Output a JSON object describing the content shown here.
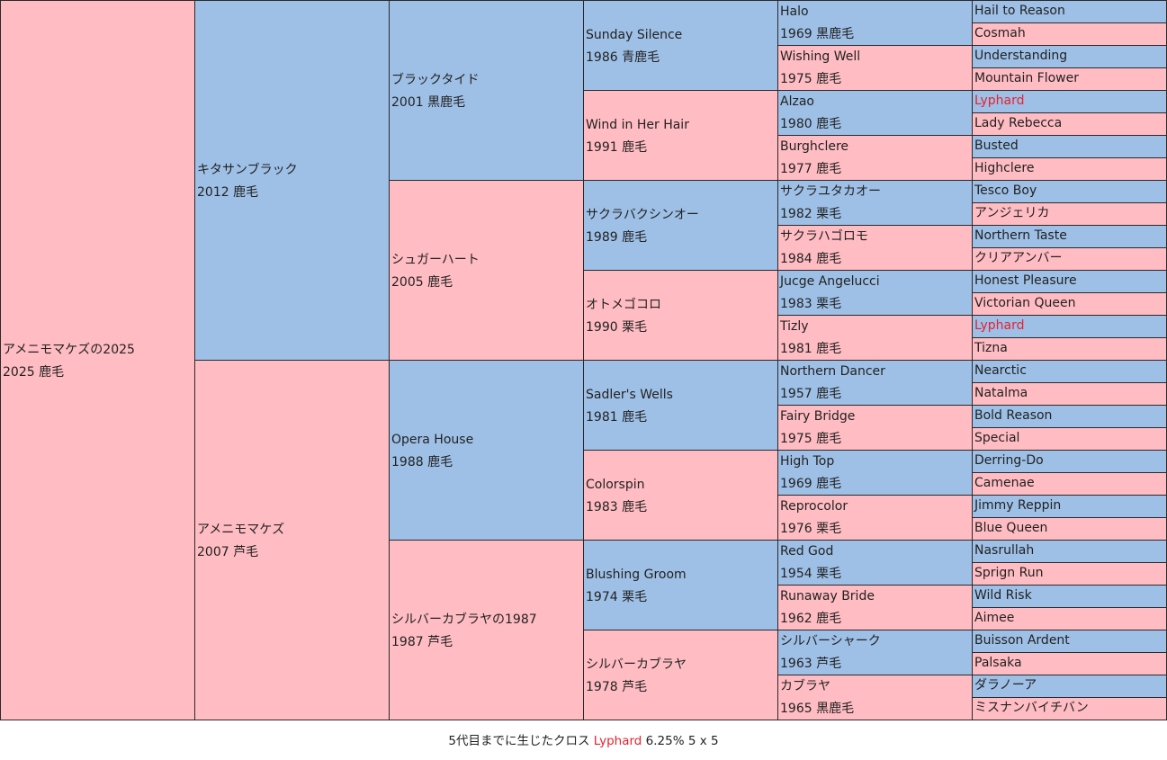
{
  "horse": {
    "name": "アメニモマケズの2025",
    "info": "2025 鹿毛"
  },
  "gen1": [
    {
      "name": "キタサンブラック",
      "info": "2012 鹿毛",
      "sex": "stallion"
    },
    {
      "name": "アメニモマケズ",
      "info": "2007 芦毛",
      "sex": "mare"
    }
  ],
  "gen2": [
    {
      "name": "ブラックタイド",
      "info": "2001 黒鹿毛",
      "sex": "stallion"
    },
    {
      "name": "シュガーハート",
      "info": "2005 鹿毛",
      "sex": "mare"
    },
    {
      "name": "Opera House",
      "info": "1988 鹿毛",
      "sex": "stallion"
    },
    {
      "name": "シルバーカブラヤの1987",
      "info": "1987 芦毛",
      "sex": "mare"
    }
  ],
  "gen3": [
    {
      "name": "Sunday Silence",
      "info": "1986 青鹿毛",
      "sex": "stallion"
    },
    {
      "name": "Wind in Her Hair",
      "info": "1991 鹿毛",
      "sex": "mare"
    },
    {
      "name": "サクラバクシンオー",
      "info": "1989 鹿毛",
      "sex": "stallion"
    },
    {
      "name": "オトメゴコロ",
      "info": "1990 栗毛",
      "sex": "mare"
    },
    {
      "name": "Sadler's Wells",
      "info": "1981 鹿毛",
      "sex": "stallion"
    },
    {
      "name": "Colorspin",
      "info": "1983 鹿毛",
      "sex": "mare"
    },
    {
      "name": "Blushing Groom",
      "info": "1974 栗毛",
      "sex": "stallion"
    },
    {
      "name": "シルバーカブラヤ",
      "info": "1978 芦毛",
      "sex": "mare"
    }
  ],
  "gen4": [
    {
      "name": "Halo",
      "info": "1969 黒鹿毛",
      "sex": "stallion"
    },
    {
      "name": "Wishing Well",
      "info": "1975 鹿毛",
      "sex": "mare"
    },
    {
      "name": "Alzao",
      "info": "1980 鹿毛",
      "sex": "stallion"
    },
    {
      "name": "Burghclere",
      "info": "1977 鹿毛",
      "sex": "mare"
    },
    {
      "name": "サクラユタカオー",
      "info": "1982 栗毛",
      "sex": "stallion"
    },
    {
      "name": "サクラハゴロモ",
      "info": "1984 鹿毛",
      "sex": "mare"
    },
    {
      "name": "Jucge Angelucci",
      "info": "1983 栗毛",
      "sex": "stallion"
    },
    {
      "name": "Tizly",
      "info": "1981 鹿毛",
      "sex": "mare"
    },
    {
      "name": "Northern Dancer",
      "info": "1957 鹿毛",
      "sex": "stallion"
    },
    {
      "name": "Fairy Bridge",
      "info": "1975 鹿毛",
      "sex": "mare"
    },
    {
      "name": "High Top",
      "info": "1969 鹿毛",
      "sex": "stallion"
    },
    {
      "name": "Reprocolor",
      "info": "1976 栗毛",
      "sex": "mare"
    },
    {
      "name": "Red God",
      "info": "1954 栗毛",
      "sex": "stallion"
    },
    {
      "name": "Runaway Bride",
      "info": "1962 鹿毛",
      "sex": "mare"
    },
    {
      "name": "シルバーシャーク",
      "info": "1963 芦毛",
      "sex": "stallion"
    },
    {
      "name": "カブラヤ",
      "info": "1965 黒鹿毛",
      "sex": "mare"
    }
  ],
  "gen5": [
    {
      "name": "Hail to Reason",
      "sex": "stallion"
    },
    {
      "name": "Cosmah",
      "sex": "mare"
    },
    {
      "name": "Understanding",
      "sex": "stallion"
    },
    {
      "name": "Mountain Flower",
      "sex": "mare"
    },
    {
      "name": "Lyphard",
      "sex": "stallion",
      "cross": true
    },
    {
      "name": "Lady Rebecca",
      "sex": "mare"
    },
    {
      "name": "Busted",
      "sex": "stallion"
    },
    {
      "name": "Highclere",
      "sex": "mare"
    },
    {
      "name": "Tesco Boy",
      "sex": "stallion"
    },
    {
      "name": "アンジェリカ",
      "sex": "mare"
    },
    {
      "name": "Northern Taste",
      "sex": "stallion"
    },
    {
      "name": "クリアアンバー",
      "sex": "mare"
    },
    {
      "name": "Honest Pleasure",
      "sex": "stallion"
    },
    {
      "name": "Victorian Queen",
      "sex": "mare"
    },
    {
      "name": "Lyphard",
      "sex": "stallion",
      "cross": true
    },
    {
      "name": "Tizna",
      "sex": "mare"
    },
    {
      "name": "Nearctic",
      "sex": "stallion"
    },
    {
      "name": "Natalma",
      "sex": "mare"
    },
    {
      "name": "Bold Reason",
      "sex": "stallion"
    },
    {
      "name": "Special",
      "sex": "mare"
    },
    {
      "name": "Derring-Do",
      "sex": "stallion"
    },
    {
      "name": "Camenae",
      "sex": "mare"
    },
    {
      "name": "Jimmy Reppin",
      "sex": "stallion"
    },
    {
      "name": "Blue Queen",
      "sex": "mare"
    },
    {
      "name": "Nasrullah",
      "sex": "stallion"
    },
    {
      "name": "Sprign Run",
      "sex": "mare"
    },
    {
      "name": "Wild Risk",
      "sex": "stallion"
    },
    {
      "name": "Aimee",
      "sex": "mare"
    },
    {
      "name": "Buisson Ardent",
      "sex": "stallion"
    },
    {
      "name": "Palsaka",
      "sex": "mare"
    },
    {
      "name": "ダラノーア",
      "sex": "stallion"
    },
    {
      "name": "ミスナンバイチバン",
      "sex": "mare"
    }
  ],
  "footer": {
    "prefix": "5代目までに生じたクロス",
    "cross_name": "Lyphard",
    "cross_detail": "6.25% 5 x 5"
  },
  "colors": {
    "stallion": "#9ec0e6",
    "mare": "#ffbcc2",
    "cross_text": "#e8212f",
    "border": "#2a2a2a"
  }
}
